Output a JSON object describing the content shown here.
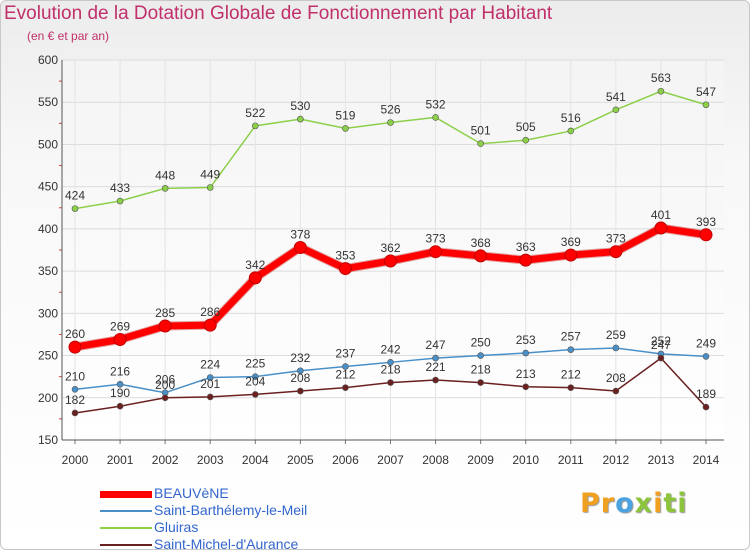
{
  "header": {
    "title": "Evolution de la Dotation Globale de Fonctionnement par Habitant",
    "subtitle": "(en € et par an)"
  },
  "logo": {
    "parts": [
      {
        "text": "Pr",
        "color": "#f0a020"
      },
      {
        "text": "o",
        "color": "#4aa3e0"
      },
      {
        "text": "x",
        "color": "#8cc43c"
      },
      {
        "text": "i",
        "color": "#f0a020"
      },
      {
        "text": "ti",
        "color": "#8cc43c"
      }
    ]
  },
  "chart_data": {
    "type": "line",
    "title": "Evolution de la Dotation Globale de Fonctionnement par Habitant",
    "subtitle": "(en € et par an)",
    "xlabel": "",
    "ylabel": "",
    "categories": [
      "2000",
      "2001",
      "2002",
      "2003",
      "2004",
      "2005",
      "2006",
      "2007",
      "2008",
      "2009",
      "2010",
      "2011",
      "2012",
      "2013",
      "2014"
    ],
    "ylim": [
      150,
      600
    ],
    "yticks": [
      150,
      200,
      250,
      300,
      350,
      400,
      450,
      500,
      550,
      600
    ],
    "grid": true,
    "legend_position": "bottom-left",
    "series": [
      {
        "name": "BEAUVèNE",
        "color": "#ff0000",
        "values": [
          260,
          269,
          285,
          286,
          342,
          378,
          353,
          362,
          373,
          368,
          363,
          369,
          373,
          401,
          393
        ]
      },
      {
        "name": "Saint-Barthélemy-le-Meil",
        "color": "#4a90c8",
        "values": [
          210,
          216,
          206,
          224,
          225,
          232,
          237,
          242,
          247,
          250,
          253,
          257,
          259,
          252,
          249
        ]
      },
      {
        "name": "Gluiras",
        "color": "#8cd04a",
        "values": [
          424,
          433,
          448,
          449,
          522,
          530,
          519,
          526,
          532,
          501,
          505,
          516,
          541,
          563,
          547
        ]
      },
      {
        "name": "Saint-Michel-d'Aurance",
        "color": "#6b2020",
        "values": [
          182,
          190,
          200,
          201,
          204,
          208,
          212,
          218,
          221,
          218,
          213,
          212,
          208,
          247,
          189
        ]
      }
    ]
  }
}
